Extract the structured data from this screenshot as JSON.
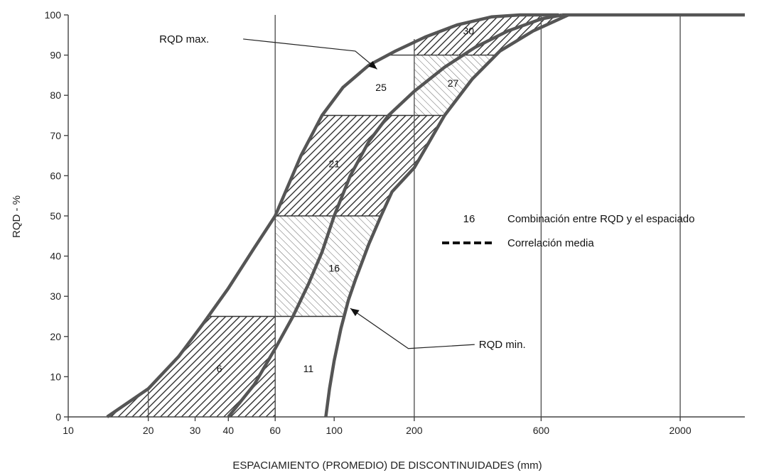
{
  "chart_data": {
    "type": "line",
    "xlabel": "ESPACIAMIENTO (PROMEDIO) DE DISCONTINUIDADES (mm)",
    "ylabel": "RQD - %",
    "x_scale": "log",
    "xlim": [
      10,
      3500
    ],
    "ylim": [
      0,
      100
    ],
    "x_ticks": [
      {
        "v": 10,
        "label": "10"
      },
      {
        "v": 20,
        "label": "20"
      },
      {
        "v": 30,
        "label": "30"
      },
      {
        "v": 40,
        "label": "40"
      },
      {
        "v": 60,
        "label": "60"
      },
      {
        "v": 100,
        "label": "100"
      },
      {
        "v": 200,
        "label": "200"
      },
      {
        "v": 600,
        "label": "600"
      },
      {
        "v": 2000,
        "label": "2000"
      }
    ],
    "y_ticks": [
      {
        "v": 0,
        "label": "0"
      },
      {
        "v": 10,
        "label": "10"
      },
      {
        "v": 20,
        "label": "20"
      },
      {
        "v": 30,
        "label": "30"
      },
      {
        "v": 40,
        "label": "40"
      },
      {
        "v": 50,
        "label": "50"
      },
      {
        "v": 60,
        "label": "60"
      },
      {
        "v": 70,
        "label": "70"
      },
      {
        "v": 80,
        "label": "80"
      },
      {
        "v": 90,
        "label": "90"
      },
      {
        "v": 100,
        "label": "100"
      }
    ],
    "vertical_lines": [
      20,
      60,
      200,
      600,
      2000
    ],
    "series": [
      {
        "key": "max",
        "x": [
          14,
          20,
          26,
          32,
          40,
          50,
          60,
          75,
          90,
          108,
          135,
          170,
          220,
          290,
          390,
          500,
          700
        ],
        "y": [
          0,
          7,
          15,
          23,
          32,
          42,
          50,
          65,
          75,
          82,
          87.5,
          91,
          94.5,
          97.5,
          99.5,
          100,
          100
        ]
      },
      {
        "key": "mean",
        "x": [
          40,
          50,
          60,
          70,
          80,
          90,
          100,
          115,
          135,
          160,
          200,
          260,
          340,
          450,
          600,
          720
        ],
        "y": [
          0,
          8,
          17,
          25,
          33,
          41,
          50,
          60,
          68.5,
          75,
          81,
          87,
          92,
          96,
          99,
          100
        ]
      },
      {
        "key": "min",
        "x": [
          93,
          96,
          100,
          106,
          113,
          120,
          135,
          150,
          165,
          200,
          260,
          330,
          420,
          560,
          760
        ],
        "y": [
          0,
          7,
          14,
          22,
          29,
          34,
          43,
          50,
          56,
          62,
          75,
          84,
          91,
          96,
          100
        ]
      }
    ],
    "upper_limit": {
      "x": [
        720,
        3500
      ],
      "y": [
        100,
        100
      ]
    },
    "zones": [
      {
        "label": "6",
        "x": 37,
        "y": 12,
        "ylo": 0,
        "yhi": 25,
        "xmin": 13,
        "xmax": 60,
        "hatch": "dense"
      },
      {
        "label": "11",
        "x": 80,
        "y": 12,
        "ylo": 0,
        "yhi": 25,
        "xmin": 60,
        "xmax": 200,
        "hatch": "none"
      },
      {
        "label": "16",
        "x": 100,
        "y": 37,
        "ylo": 25,
        "yhi": 50,
        "xmin": 60,
        "xmax": 200,
        "hatch": "light"
      },
      {
        "label": "21",
        "x": 100,
        "y": 63,
        "ylo": 50,
        "yhi": 75,
        "xmin": 30,
        "xmax": 600,
        "hatch": "dense"
      },
      {
        "label": "25",
        "x": 150,
        "y": 82,
        "ylo": 75,
        "yhi": 90,
        "xmin": 60,
        "xmax": 200,
        "hatch": "none"
      },
      {
        "label": "27",
        "x": 280,
        "y": 83,
        "ylo": 75,
        "yhi": 90,
        "xmin": 200,
        "xmax": 2000,
        "hatch": "light"
      },
      {
        "label": "30",
        "x": 320,
        "y": 96,
        "ylo": 90,
        "yhi": 100,
        "xmin": 200,
        "xmax": 2000,
        "hatch": "dense"
      }
    ],
    "annotations": [
      {
        "key": "max",
        "text": "RQD max.",
        "text_x": 22,
        "text_y": 94,
        "elbow_x": 120,
        "elbow_y": 91,
        "target_x": 145,
        "target_y": 86.5
      },
      {
        "key": "min",
        "text": "RQD min.",
        "text_x": 350,
        "text_y": 18,
        "elbow_x": 190,
        "elbow_y": 17,
        "target_x": 115,
        "target_y": 27
      }
    ],
    "legend": {
      "position": "right",
      "zone_number": "16",
      "zone_text": "Combinación entre RQD y el espaciado",
      "mean_text": "Correlación media"
    }
  }
}
